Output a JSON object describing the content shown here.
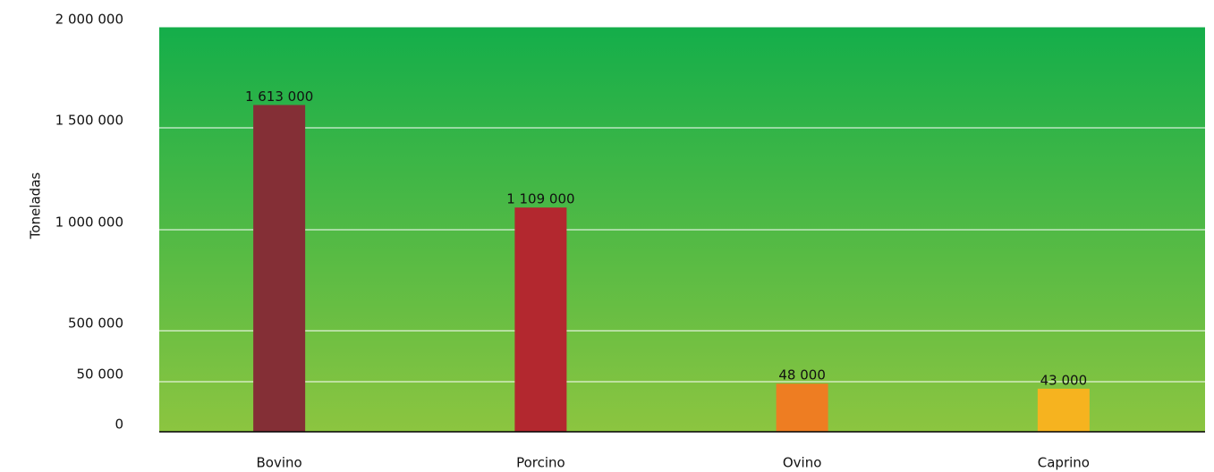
{
  "chart_data": {
    "type": "bar",
    "y_label": "Toneladas",
    "categories": [
      "Bovino",
      "Porcino",
      "Ovino",
      "Caprino"
    ],
    "values": [
      1613000,
      1109000,
      48000,
      43000
    ],
    "value_labels": [
      "1 613 000",
      "1 109 000",
      "48 000",
      "43 000"
    ],
    "colors": [
      "#842f36",
      "#b3282f",
      "#ee7d22",
      "#f6b31f"
    ],
    "background": [
      "#14ae4a",
      "#8cc540"
    ],
    "ylim": [
      0,
      2000000
    ],
    "yticks": [
      0,
      {
        "value": 50000,
        "label": "50 000"
      },
      {
        "value": 500000,
        "label": "500 000"
      },
      {
        "value": 1000000,
        "label": "1 000 000"
      },
      {
        "value": 1500000,
        "label": "1 500 000"
      },
      {
        "value": 2000000,
        "label": "2 000 000"
      }
    ],
    "grid": true
  }
}
